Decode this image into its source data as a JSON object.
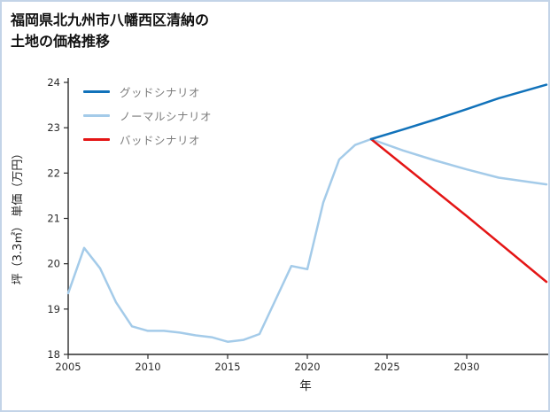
{
  "chart_data": {
    "type": "line",
    "title": "福岡県北九州市八幡西区清納の\n土地の価格推移",
    "xlabel": "年",
    "ylabel": "坪（3.3㎡） 単価（万円）",
    "xlim": [
      2005,
      2035
    ],
    "ylim": [
      18,
      24
    ],
    "xticks": [
      2005,
      2010,
      2015,
      2020,
      2025,
      2030
    ],
    "yticks": [
      18,
      19,
      20,
      21,
      22,
      23,
      24
    ],
    "grid": false,
    "legend_position": "upper-left",
    "axis_color": "#2b2b2b",
    "series": [
      {
        "key": "good",
        "name": "グッドシナリオ",
        "color": "#1172ba",
        "x": [
          2024,
          2026,
          2028,
          2030,
          2032,
          2035
        ],
        "y": [
          22.75,
          22.96,
          23.18,
          23.41,
          23.65,
          23.95
        ]
      },
      {
        "key": "normal",
        "name": "ノーマルシナリオ",
        "color": "#a4cbe9",
        "x": [
          2005,
          2006,
          2007,
          2008,
          2009,
          2010,
          2011,
          2012,
          2013,
          2014,
          2015,
          2016,
          2017,
          2018,
          2019,
          2020,
          2021,
          2022,
          2023,
          2024,
          2026,
          2028,
          2030,
          2032,
          2035
        ],
        "y": [
          19.35,
          20.35,
          19.9,
          19.15,
          18.62,
          18.52,
          18.52,
          18.48,
          18.42,
          18.38,
          18.28,
          18.32,
          18.45,
          19.2,
          19.95,
          19.88,
          21.35,
          22.3,
          22.62,
          22.75,
          22.5,
          22.28,
          22.08,
          21.9,
          21.75
        ]
      },
      {
        "key": "bad",
        "name": "バッドシナリオ",
        "color": "#e41515",
        "x": [
          2024,
          2030,
          2035
        ],
        "y": [
          22.75,
          21.05,
          19.6
        ]
      }
    ]
  }
}
